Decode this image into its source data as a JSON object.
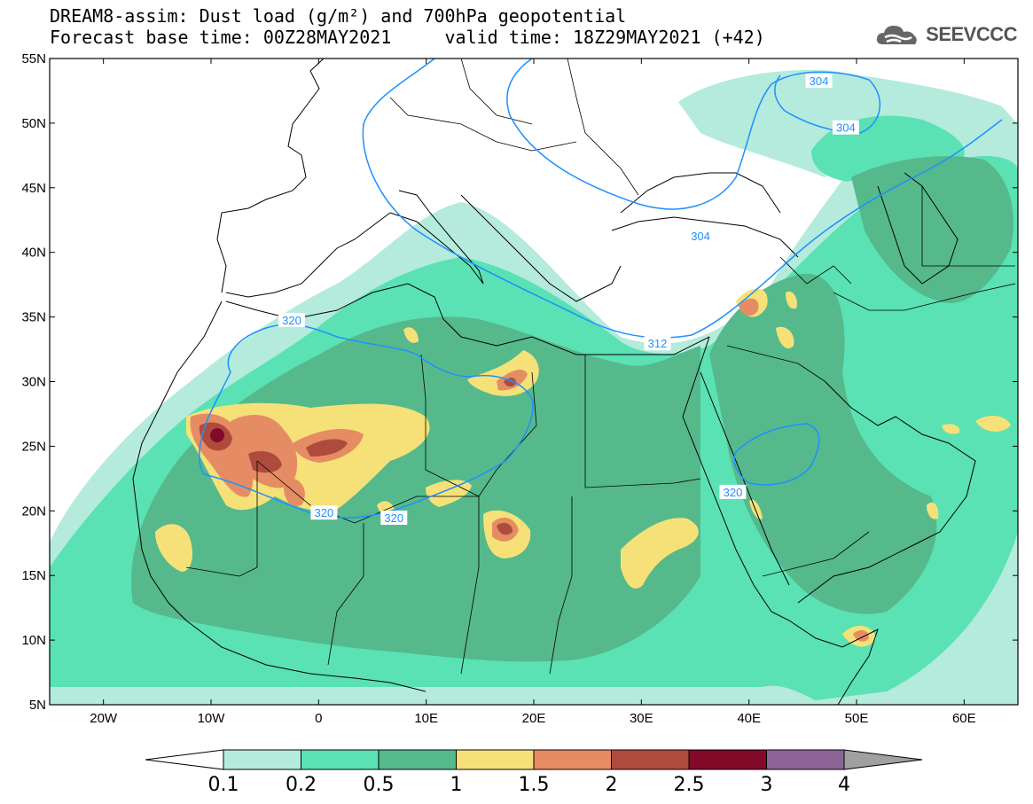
{
  "title": {
    "line1": "DREAM8-assim: Dust load (g/m²) and 700hPa geopotential",
    "line2": "Forecast base time: 00Z28MAY2021     valid time: 18Z29MAY2021 (+42)"
  },
  "logo": {
    "text": "SEEVCCC",
    "icon": "cloud-icon"
  },
  "map": {
    "lon_range": [
      -25,
      65
    ],
    "lat_range": [
      5,
      55
    ],
    "lat_ticks": [
      "55N",
      "50N",
      "45N",
      "40N",
      "35N",
      "30N",
      "25N",
      "20N",
      "15N",
      "10N",
      "5N"
    ],
    "lon_ticks": [
      "20W",
      "10W",
      "0",
      "10E",
      "20E",
      "30E",
      "40E",
      "50E",
      "60E"
    ],
    "contour_labels": [
      {
        "text": "304",
        "lon": 46.5,
        "lat": 53.2
      },
      {
        "text": "304",
        "lon": 49.0,
        "lat": 49.6
      },
      {
        "text": "304",
        "lon": 35.5,
        "lat": 41.2
      },
      {
        "text": "312",
        "lon": 31.5,
        "lat": 32.9
      },
      {
        "text": "320",
        "lon": -2.5,
        "lat": 34.7
      },
      {
        "text": "320",
        "lon": 38.5,
        "lat": 21.4
      },
      {
        "text": "320",
        "lon": 0.5,
        "lat": 19.8
      },
      {
        "text": "320",
        "lon": 7.0,
        "lat": 19.4
      }
    ],
    "contour_color": "#1e90ff"
  },
  "colorbar": {
    "labels": [
      "0.1",
      "0.2",
      "0.5",
      "1",
      "1.5",
      "2",
      "2.5",
      "3",
      "4"
    ],
    "colors": [
      "#b4ebdc",
      "#5ae1b4",
      "#55b98c",
      "#f5e178",
      "#e68c64",
      "#af4b3c",
      "#820a28",
      "#8c6496"
    ],
    "left_arrow_color": "#ffffff",
    "right_arrow_color": "#a0a0a0"
  },
  "dust_colors": {
    "level1": "#b4ebdc",
    "level2": "#5ae1b4",
    "level3": "#55b98c",
    "level4": "#f5e178",
    "level5": "#e68c64",
    "level6": "#af4b3c",
    "level7": "#820a28"
  }
}
